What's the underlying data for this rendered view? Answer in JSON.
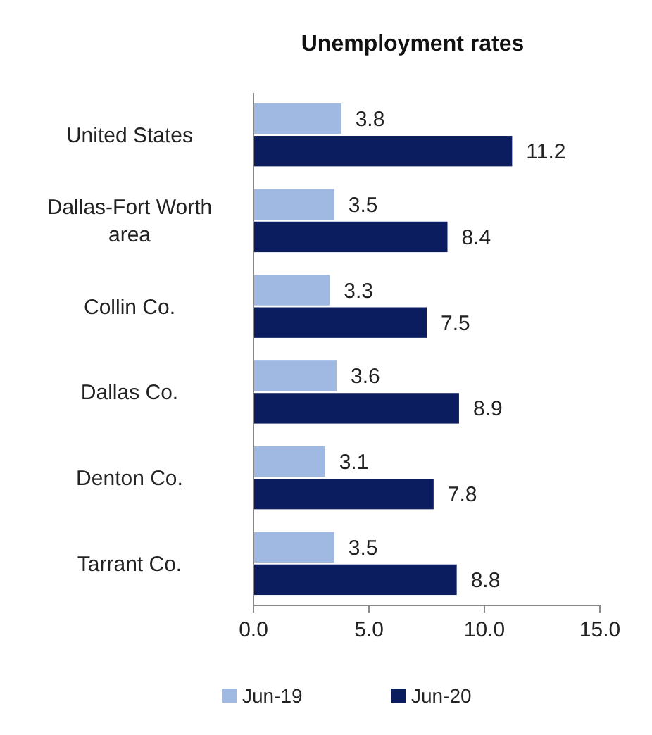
{
  "chart_data": {
    "type": "bar",
    "orientation": "horizontal",
    "title": "Unemployment rates",
    "categories": [
      "United States",
      "Dallas-Fort Worth area",
      "Collin Co.",
      "Dallas Co.",
      "Denton Co.",
      "Tarrant Co."
    ],
    "series": [
      {
        "name": "Jun-19",
        "color": "#9fb9e3",
        "values": [
          3.8,
          3.5,
          3.3,
          3.6,
          3.1,
          3.5
        ]
      },
      {
        "name": "Jun-20",
        "color": "#0b1d5e",
        "values": [
          11.2,
          8.4,
          7.5,
          8.9,
          7.8,
          8.8
        ]
      }
    ],
    "xlim": [
      0,
      15
    ],
    "xticks": [
      {
        "value": 0,
        "label": "0.0"
      },
      {
        "value": 5,
        "label": "5.0"
      },
      {
        "value": 10,
        "label": "10.0"
      },
      {
        "value": 15,
        "label": "15.0"
      }
    ],
    "data_labels": true,
    "legend": "bottom",
    "grid": false
  }
}
